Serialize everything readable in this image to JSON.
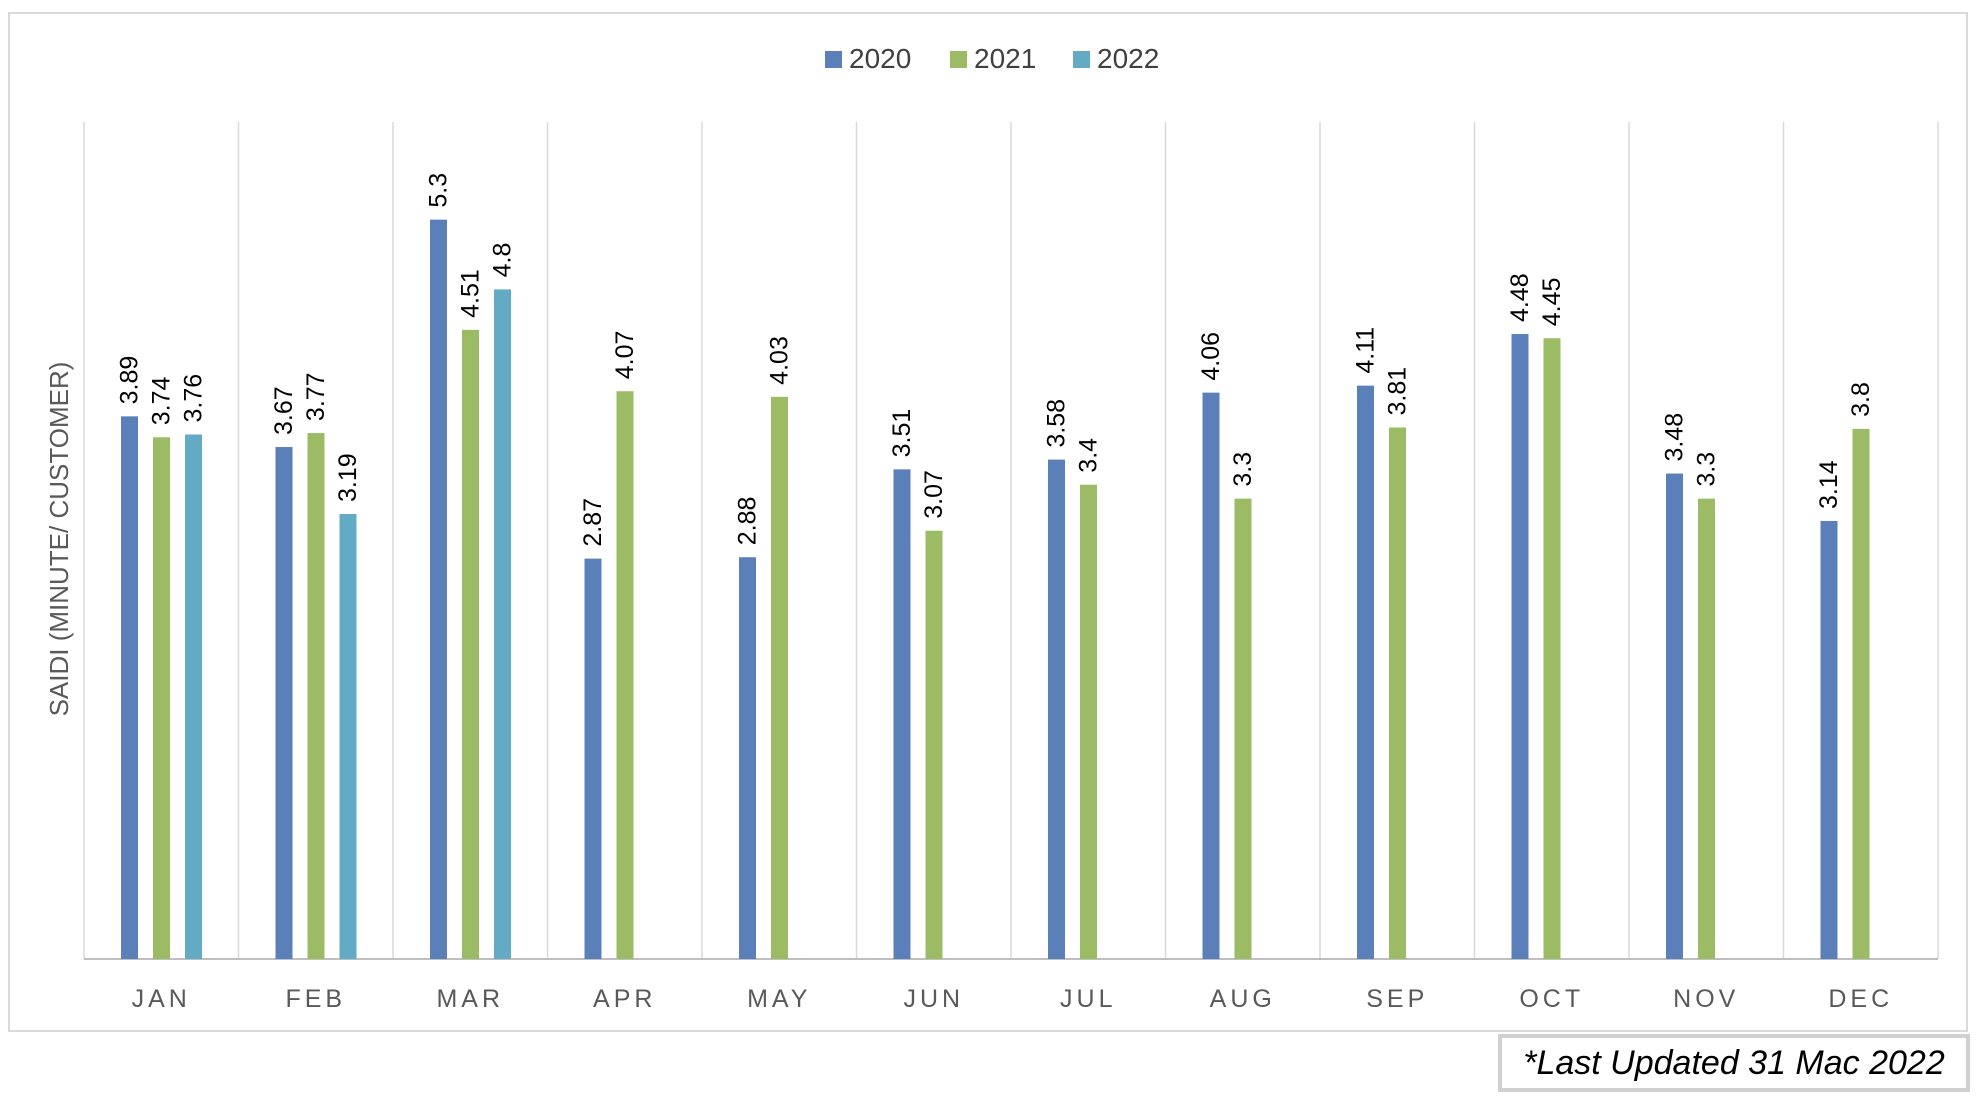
{
  "chart_data": {
    "type": "bar",
    "categories": [
      "JAN",
      "FEB",
      "MAR",
      "APR",
      "MAY",
      "JUN",
      "JUL",
      "AUG",
      "SEP",
      "OCT",
      "NOV",
      "DEC"
    ],
    "series": [
      {
        "name": "2020",
        "color": "#5b7fb8",
        "values": [
          3.89,
          3.67,
          5.3,
          2.87,
          2.88,
          3.51,
          3.58,
          4.06,
          4.11,
          4.48,
          3.48,
          3.14
        ]
      },
      {
        "name": "2021",
        "color": "#9bbb64",
        "values": [
          3.74,
          3.77,
          4.51,
          4.07,
          4.03,
          3.07,
          3.4,
          3.3,
          3.81,
          4.45,
          3.3,
          3.8
        ]
      },
      {
        "name": "2022",
        "color": "#63abc4",
        "values": [
          3.76,
          3.19,
          4.8,
          null,
          null,
          null,
          null,
          null,
          null,
          null,
          null,
          null
        ]
      }
    ],
    "title": "",
    "xlabel": "",
    "ylabel": "SAIDI (MINUTE/ CUSTOMER)",
    "ylim": [
      0,
      6
    ],
    "grid": "vertical category separators",
    "legend": "top-center",
    "data_labels": "vertical, above bars"
  },
  "note": "*Last Updated 31 Mac 2022"
}
